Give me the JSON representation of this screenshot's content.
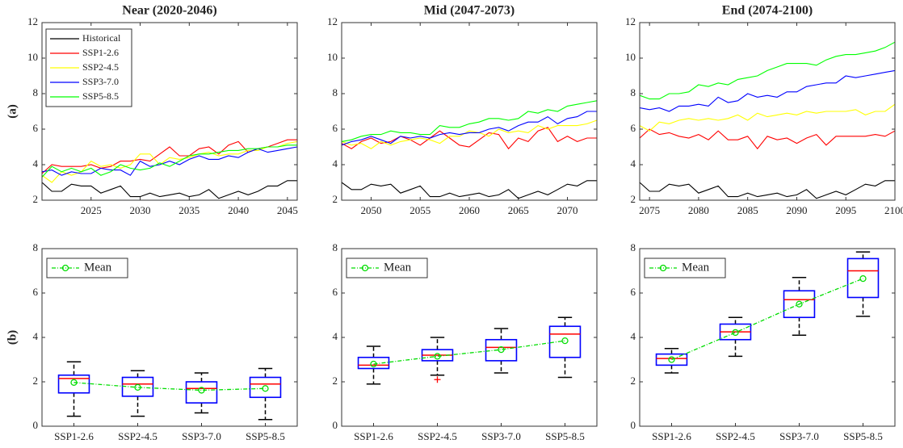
{
  "chart_data": [
    {
      "type": "line",
      "title": "Near (2020-2046)",
      "ylabel": "(a)",
      "legend": "upper left",
      "x": [
        2020,
        2021,
        2022,
        2023,
        2024,
        2025,
        2026,
        2027,
        2028,
        2029,
        2030,
        2031,
        2032,
        2033,
        2034,
        2035,
        2036,
        2037,
        2038,
        2039,
        2040,
        2041,
        2042,
        2043,
        2044,
        2045,
        2046
      ],
      "xlim": [
        2020,
        2046
      ],
      "xticks": [
        2025,
        2030,
        2035,
        2040,
        2045
      ],
      "ylim": [
        2,
        12
      ],
      "yticks": [
        2,
        4,
        6,
        8,
        10,
        12
      ],
      "series": [
        {
          "name": "Historical",
          "color": "#000000",
          "values": [
            3.0,
            2.5,
            2.5,
            2.9,
            2.8,
            2.8,
            2.4,
            2.6,
            2.8,
            2.2,
            2.2,
            2.4,
            2.2,
            2.3,
            2.4,
            2.2,
            2.3,
            2.6,
            2.1,
            2.3,
            2.5,
            2.3,
            2.5,
            2.8,
            2.8,
            3.1,
            3.1
          ]
        },
        {
          "name": "SSP1-2.6",
          "color": "#ff0000",
          "values": [
            3.5,
            4.0,
            3.9,
            3.9,
            3.9,
            4.0,
            3.8,
            3.9,
            4.2,
            4.2,
            4.3,
            4.2,
            4.6,
            5.0,
            4.5,
            4.5,
            4.9,
            5.0,
            4.6,
            5.1,
            5.3,
            4.7,
            4.9,
            5.0,
            5.2,
            5.4,
            5.4
          ]
        },
        {
          "name": "SSP2-4.5",
          "color": "#ffff00",
          "values": [
            3.4,
            3.0,
            3.6,
            3.4,
            3.6,
            4.2,
            3.9,
            4.0,
            3.8,
            4.0,
            4.6,
            4.6,
            4.0,
            4.4,
            4.3,
            4.4,
            4.6,
            4.7,
            4.5,
            4.6,
            4.6,
            4.8,
            4.8,
            5.0,
            5.0,
            5.2,
            5.3
          ]
        },
        {
          "name": "SSP3-7.0",
          "color": "#0000ff",
          "values": [
            3.6,
            3.7,
            3.4,
            3.6,
            3.5,
            3.5,
            3.8,
            3.7,
            3.7,
            3.4,
            4.2,
            3.9,
            4.0,
            4.2,
            4.0,
            4.3,
            4.5,
            4.3,
            4.3,
            4.5,
            4.4,
            4.7,
            4.9,
            4.7,
            4.8,
            4.9,
            5.0
          ]
        },
        {
          "name": "SSP5-8.5",
          "color": "#00ff00",
          "values": [
            3.3,
            3.9,
            3.6,
            3.8,
            3.6,
            3.8,
            3.4,
            3.6,
            4.0,
            3.8,
            3.7,
            3.8,
            4.1,
            3.9,
            4.2,
            4.5,
            4.6,
            4.6,
            4.7,
            4.8,
            4.8,
            4.9,
            4.9,
            5.0,
            5.0,
            5.1,
            5.1
          ]
        }
      ]
    },
    {
      "type": "line",
      "title": "Mid (2047-2073)",
      "x": [
        2047,
        2048,
        2049,
        2050,
        2051,
        2052,
        2053,
        2054,
        2055,
        2056,
        2057,
        2058,
        2059,
        2060,
        2061,
        2062,
        2063,
        2064,
        2065,
        2066,
        2067,
        2068,
        2069,
        2070,
        2071,
        2072,
        2073
      ],
      "xlim": [
        2047,
        2073
      ],
      "xticks": [
        2050,
        2055,
        2060,
        2065,
        2070
      ],
      "ylim": [
        2,
        12
      ],
      "yticks": [
        2,
        4,
        6,
        8,
        10,
        12
      ],
      "series": [
        {
          "color": "#000000",
          "values": [
            3.0,
            2.6,
            2.6,
            2.9,
            2.8,
            2.9,
            2.4,
            2.6,
            2.8,
            2.2,
            2.2,
            2.4,
            2.2,
            2.3,
            2.4,
            2.2,
            2.3,
            2.6,
            2.1,
            2.3,
            2.5,
            2.3,
            2.6,
            2.9,
            2.8,
            3.1,
            3.1
          ]
        },
        {
          "color": "#ff0000",
          "values": [
            5.2,
            4.9,
            5.3,
            5.5,
            5.2,
            5.3,
            5.6,
            5.4,
            5.1,
            5.5,
            5.9,
            5.5,
            5.1,
            5.0,
            5.4,
            5.8,
            5.7,
            4.9,
            5.5,
            5.3,
            5.9,
            6.1,
            5.3,
            5.6,
            5.3,
            5.5,
            5.5
          ]
        },
        {
          "color": "#ffff00",
          "values": [
            5.3,
            5.1,
            5.2,
            4.9,
            5.3,
            5.1,
            5.3,
            5.4,
            5.5,
            5.4,
            5.2,
            5.6,
            5.6,
            5.9,
            5.8,
            5.6,
            6.0,
            5.8,
            5.9,
            5.8,
            6.2,
            6.0,
            6.2,
            6.2,
            6.2,
            6.3,
            6.5
          ]
        },
        {
          "color": "#0000ff",
          "values": [
            5.1,
            5.3,
            5.4,
            5.6,
            5.4,
            5.2,
            5.6,
            5.5,
            5.6,
            5.5,
            5.7,
            5.8,
            5.7,
            5.8,
            5.8,
            6.0,
            6.1,
            5.9,
            6.2,
            6.4,
            6.4,
            6.7,
            6.3,
            6.6,
            6.7,
            7.0,
            7.0
          ]
        },
        {
          "color": "#00ff00",
          "values": [
            5.3,
            5.4,
            5.6,
            5.7,
            5.7,
            5.9,
            5.8,
            5.8,
            5.7,
            5.7,
            6.2,
            6.1,
            6.1,
            6.3,
            6.4,
            6.6,
            6.6,
            6.5,
            6.6,
            7.0,
            6.9,
            7.1,
            7.0,
            7.3,
            7.4,
            7.5,
            7.6
          ]
        }
      ]
    },
    {
      "type": "line",
      "title": "End (2074-2100)",
      "x": [
        2074,
        2075,
        2076,
        2077,
        2078,
        2079,
        2080,
        2081,
        2082,
        2083,
        2084,
        2085,
        2086,
        2087,
        2088,
        2089,
        2090,
        2091,
        2092,
        2093,
        2094,
        2095,
        2096,
        2097,
        2098,
        2099,
        2100
      ],
      "xlim": [
        2074,
        2100
      ],
      "xticks": [
        2075,
        2080,
        2085,
        2090,
        2095,
        2100
      ],
      "ylim": [
        2,
        12
      ],
      "yticks": [
        2,
        4,
        6,
        8,
        10,
        12
      ],
      "series": [
        {
          "color": "#000000",
          "values": [
            3.0,
            2.5,
            2.5,
            2.9,
            2.8,
            2.9,
            2.4,
            2.6,
            2.8,
            2.2,
            2.2,
            2.4,
            2.2,
            2.3,
            2.4,
            2.2,
            2.3,
            2.6,
            2.1,
            2.3,
            2.5,
            2.3,
            2.6,
            2.9,
            2.8,
            3.1,
            3.1
          ]
        },
        {
          "color": "#ff0000",
          "values": [
            5.5,
            6.0,
            5.7,
            5.8,
            5.6,
            5.5,
            5.7,
            5.4,
            5.9,
            5.4,
            5.4,
            5.6,
            4.9,
            5.6,
            5.4,
            5.5,
            5.2,
            5.5,
            5.7,
            5.1,
            5.6,
            5.6,
            5.6,
            5.6,
            5.7,
            5.6,
            5.9
          ]
        },
        {
          "color": "#ffff00",
          "values": [
            6.2,
            5.9,
            6.4,
            6.3,
            6.5,
            6.6,
            6.5,
            6.6,
            6.5,
            6.6,
            6.8,
            6.5,
            6.9,
            6.7,
            6.8,
            6.9,
            6.8,
            7.0,
            6.9,
            7.0,
            7.0,
            7.0,
            7.1,
            6.8,
            7.0,
            7.0,
            7.4
          ]
        },
        {
          "color": "#0000ff",
          "values": [
            7.2,
            7.1,
            7.2,
            7.0,
            7.3,
            7.3,
            7.4,
            7.3,
            7.8,
            7.5,
            7.6,
            8.0,
            7.8,
            7.9,
            7.8,
            8.1,
            8.1,
            8.4,
            8.5,
            8.6,
            8.6,
            9.0,
            8.9,
            9.0,
            9.1,
            9.2,
            9.3
          ]
        },
        {
          "color": "#00ff00",
          "values": [
            7.9,
            7.7,
            7.7,
            8.0,
            8.0,
            8.1,
            8.5,
            8.4,
            8.6,
            8.5,
            8.8,
            8.9,
            9.0,
            9.3,
            9.5,
            9.7,
            9.7,
            9.7,
            9.6,
            9.9,
            10.1,
            10.2,
            10.2,
            10.3,
            10.4,
            10.6,
            10.9
          ]
        }
      ]
    },
    {
      "type": "box",
      "ylabel": "(b)",
      "categories": [
        "SSP1-2.6",
        "SSP2-4.5",
        "SSP3-7.0",
        "SSP5-8.5"
      ],
      "ylim": [
        0,
        8
      ],
      "yticks": [
        0,
        2,
        4,
        6,
        8
      ],
      "boxes": [
        {
          "min": 0.45,
          "q1": 1.5,
          "median": 2.15,
          "q3": 2.3,
          "max": 2.9
        },
        {
          "min": 0.45,
          "q1": 1.35,
          "median": 1.9,
          "q3": 2.2,
          "max": 2.5
        },
        {
          "min": 0.6,
          "q1": 1.05,
          "median": 1.7,
          "q3": 2.0,
          "max": 2.4
        },
        {
          "min": 0.3,
          "q1": 1.3,
          "median": 1.9,
          "q3": 2.2,
          "max": 2.6
        }
      ],
      "mean": {
        "name": "Mean",
        "color": "#00dd00",
        "values": [
          1.97,
          1.75,
          1.62,
          1.7
        ]
      }
    },
    {
      "type": "box",
      "categories": [
        "SSP1-2.6",
        "SSP2-4.5",
        "SSP3-7.0",
        "SSP5-8.5"
      ],
      "ylim": [
        0,
        8
      ],
      "yticks": [
        0,
        2,
        4,
        6,
        8
      ],
      "boxes": [
        {
          "min": 1.9,
          "q1": 2.6,
          "median": 2.75,
          "q3": 3.1,
          "max": 3.6
        },
        {
          "min": 2.3,
          "q1": 2.95,
          "median": 3.2,
          "q3": 3.45,
          "max": 4.0,
          "outliers": [
            2.1
          ]
        },
        {
          "min": 2.4,
          "q1": 2.95,
          "median": 3.55,
          "q3": 3.9,
          "max": 4.4
        },
        {
          "min": 2.2,
          "q1": 3.1,
          "median": 4.15,
          "q3": 4.5,
          "max": 4.9
        }
      ],
      "mean": {
        "name": "Mean",
        "color": "#00dd00",
        "values": [
          2.8,
          3.15,
          3.45,
          3.85
        ]
      }
    },
    {
      "type": "box",
      "categories": [
        "SSP1-2.6",
        "SSP2-4.5",
        "SSP3-7.0",
        "SSP5-8.5"
      ],
      "ylim": [
        0,
        8
      ],
      "yticks": [
        0,
        2,
        4,
        6,
        8
      ],
      "boxes": [
        {
          "min": 2.4,
          "q1": 2.75,
          "median": 3.05,
          "q3": 3.25,
          "max": 3.5
        },
        {
          "min": 3.15,
          "q1": 3.9,
          "median": 4.25,
          "q3": 4.6,
          "max": 4.9
        },
        {
          "min": 4.1,
          "q1": 4.9,
          "median": 5.7,
          "q3": 6.1,
          "max": 6.7
        },
        {
          "min": 4.95,
          "q1": 5.8,
          "median": 7.0,
          "q3": 7.55,
          "max": 7.85
        }
      ],
      "mean": {
        "name": "Mean",
        "color": "#00dd00",
        "values": [
          3.0,
          4.22,
          5.5,
          6.65
        ]
      }
    }
  ]
}
